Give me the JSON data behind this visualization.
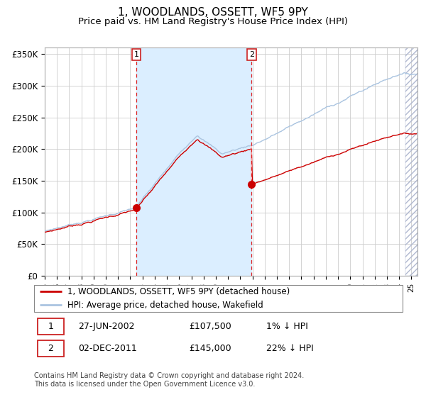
{
  "title": "1, WOODLANDS, OSSETT, WF5 9PY",
  "subtitle": "Price paid vs. HM Land Registry's House Price Index (HPI)",
  "title_fontsize": 11,
  "subtitle_fontsize": 9.5,
  "ylim": [
    0,
    360000
  ],
  "yticks": [
    0,
    50000,
    100000,
    150000,
    200000,
    250000,
    300000,
    350000
  ],
  "ytick_labels": [
    "£0",
    "£50K",
    "£100K",
    "£150K",
    "£200K",
    "£250K",
    "£300K",
    "£350K"
  ],
  "hpi_color": "#aac4e0",
  "property_color": "#cc0000",
  "bg_color": "#ffffff",
  "plot_bg_color": "#ffffff",
  "shaded_region_color": "#dbeeff",
  "grid_color": "#cccccc",
  "sale1_date_num": 2002.49,
  "sale1_price": 107500,
  "sale2_date_num": 2011.92,
  "sale2_price": 145000,
  "sale1_label": "1",
  "sale2_label": "2",
  "legend_property": "1, WOODLANDS, OSSETT, WF5 9PY (detached house)",
  "legend_hpi": "HPI: Average price, detached house, Wakefield",
  "table_row1": [
    "1",
    "27-JUN-2002",
    "£107,500",
    "1% ↓ HPI"
  ],
  "table_row2": [
    "2",
    "02-DEC-2011",
    "£145,000",
    "22% ↓ HPI"
  ],
  "footnote": "Contains HM Land Registry data © Crown copyright and database right 2024.\nThis data is licensed under the Open Government Licence v3.0.",
  "xmin": 1995.0,
  "xmax": 2025.5,
  "hatch_start": 2024.5,
  "footnote_fontsize": 7,
  "legend_fontsize": 8.5
}
